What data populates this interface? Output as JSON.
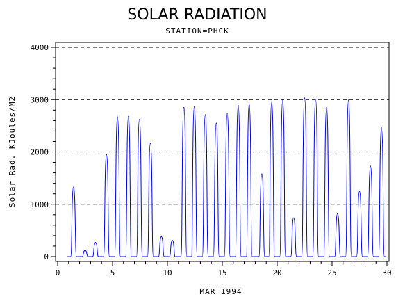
{
  "chart_data": {
    "type": "line",
    "title": "SOLAR RADIATION",
    "subtitle": "STATION=PHCK",
    "xlabel": "MAR 1994",
    "ylabel": "Solar Rad. KJoules/M2",
    "xlim": [
      0,
      30
    ],
    "ylim": [
      0,
      4000
    ],
    "x_ticks": [
      0,
      5,
      10,
      15,
      20,
      25,
      30
    ],
    "y_ticks": [
      0,
      1000,
      2000,
      3000,
      4000
    ],
    "grid": "horizontal-dashed",
    "line_color": "#0000ee",
    "daily_peaks": [
      {
        "day": 1.45,
        "peak": 1330
      },
      {
        "day": 2.5,
        "peak": 120
      },
      {
        "day": 3.45,
        "peak": 270
      },
      {
        "day": 4.45,
        "peak": 1950
      },
      {
        "day": 5.45,
        "peak": 2670
      },
      {
        "day": 6.45,
        "peak": 2680
      },
      {
        "day": 7.45,
        "peak": 2620
      },
      {
        "day": 8.45,
        "peak": 2170
      },
      {
        "day": 9.45,
        "peak": 380
      },
      {
        "day": 10.45,
        "peak": 310
      },
      {
        "day": 11.5,
        "peak": 2850
      },
      {
        "day": 12.45,
        "peak": 2860
      },
      {
        "day": 13.45,
        "peak": 2710
      },
      {
        "day": 14.45,
        "peak": 2550
      },
      {
        "day": 15.45,
        "peak": 2740
      },
      {
        "day": 16.45,
        "peak": 2890
      },
      {
        "day": 17.45,
        "peak": 2920
      },
      {
        "day": 18.6,
        "peak": 1580
      },
      {
        "day": 19.5,
        "peak": 2960
      },
      {
        "day": 20.5,
        "peak": 2990
      },
      {
        "day": 21.5,
        "peak": 740
      },
      {
        "day": 22.5,
        "peak": 3030
      },
      {
        "day": 23.5,
        "peak": 3010
      },
      {
        "day": 24.5,
        "peak": 2850
      },
      {
        "day": 25.5,
        "peak": 820
      },
      {
        "day": 26.5,
        "peak": 2990
      },
      {
        "day": 27.5,
        "peak": 1250
      },
      {
        "day": 28.5,
        "peak": 1730
      },
      {
        "day": 29.5,
        "peak": 2460
      }
    ]
  }
}
